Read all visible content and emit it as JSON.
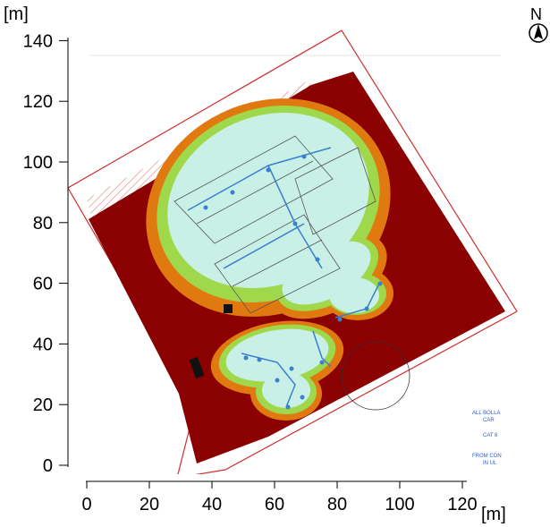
{
  "chart_data": {
    "type": "heatmap",
    "description_units": "m",
    "x_unit_label": "[m]",
    "y_unit_label": "[m]",
    "x_ticks": [
      0,
      20,
      40,
      60,
      80,
      100,
      120
    ],
    "y_ticks": [
      0,
      20,
      40,
      60,
      80,
      100,
      120,
      140
    ],
    "xlim": [
      -6,
      133
    ],
    "ylim": [
      -4,
      143
    ],
    "grid": false,
    "north_label": "N",
    "plan_notes": [
      "ALL BOLLA",
      "CAR",
      "CAT 6",
      "FROM CON",
      "IN UL"
    ],
    "colors": {
      "coverage_low": "#8b0000",
      "coverage_mid": "#e07a10",
      "coverage_good": "#9fd84a",
      "coverage_high": "#c8f0e6",
      "boundary": "#d03030",
      "cable": "#3a7fd0"
    }
  }
}
